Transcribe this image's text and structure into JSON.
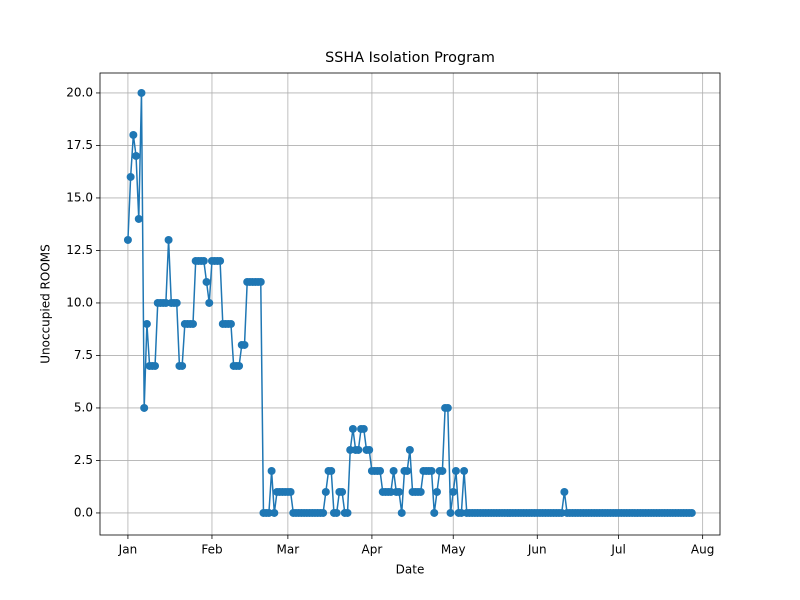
{
  "chart_data": {
    "type": "line",
    "title": "SSHA Isolation Program",
    "x_label": "Date",
    "y_label": "Unoccupied ROOMS",
    "color": "#1f77b4",
    "grid": true,
    "x": [
      0,
      1,
      2,
      3,
      4,
      5,
      6,
      7,
      8,
      9,
      10,
      11,
      12,
      13,
      14,
      15,
      16,
      17,
      18,
      19,
      20,
      21,
      22,
      23,
      24,
      25,
      26,
      27,
      28,
      29,
      30,
      31,
      32,
      33,
      34,
      35,
      36,
      37,
      38,
      39,
      40,
      41,
      42,
      43,
      44,
      45,
      46,
      47,
      48,
      49,
      50,
      51,
      52,
      53,
      54,
      55,
      56,
      57,
      58,
      59,
      60,
      61,
      62,
      63,
      64,
      65,
      66,
      67,
      68,
      69,
      70,
      71,
      72,
      73,
      74,
      75,
      76,
      77,
      78,
      79,
      80,
      81,
      82,
      83,
      84,
      85,
      86,
      87,
      88,
      89,
      90,
      91,
      92,
      93,
      94,
      95,
      96,
      97,
      98,
      99,
      100,
      101,
      102,
      103,
      104,
      105,
      106,
      107,
      108,
      109,
      110,
      111,
      112,
      113,
      114,
      115,
      116,
      117,
      118,
      119,
      120,
      121,
      122,
      123,
      124,
      125,
      126,
      127,
      128,
      129,
      130,
      131,
      132,
      133,
      134,
      135,
      136,
      137,
      138,
      139,
      140,
      141,
      142,
      143,
      144,
      145,
      146,
      147,
      148,
      149,
      150,
      151,
      152,
      153,
      154,
      155,
      156,
      157,
      158,
      159,
      160,
      161,
      162,
      163,
      164,
      165,
      166,
      167,
      168,
      169,
      170,
      171,
      172,
      173,
      174,
      175,
      176,
      177,
      178,
      179,
      180,
      181,
      182,
      183,
      184,
      185,
      186,
      187,
      188,
      189,
      190,
      191,
      192,
      193,
      194,
      195,
      196,
      197,
      198,
      199,
      200,
      201,
      202,
      203,
      204,
      205,
      206,
      207,
      208
    ],
    "values": [
      13,
      16,
      18,
      17,
      14,
      20,
      5,
      9,
      7,
      7,
      7,
      10,
      10,
      10,
      10,
      13,
      10,
      10,
      10,
      7,
      7,
      9,
      9,
      9,
      9,
      12,
      12,
      12,
      12,
      11,
      10,
      12,
      12,
      12,
      12,
      9,
      9,
      9,
      9,
      7,
      7,
      7,
      8,
      8,
      11,
      11,
      11,
      11,
      11,
      11,
      0,
      0,
      0,
      2,
      0,
      1,
      1,
      1,
      1,
      1,
      1,
      0,
      0,
      0,
      0,
      0,
      0,
      0,
      0,
      0,
      0,
      0,
      0,
      1,
      2,
      2,
      0,
      0,
      1,
      1,
      0,
      0,
      3,
      4,
      3,
      3,
      4,
      4,
      3,
      3,
      2,
      2,
      2,
      2,
      1,
      1,
      1,
      1,
      2,
      1,
      1,
      0,
      2,
      2,
      3,
      1,
      1,
      1,
      1,
      2,
      2,
      2,
      2,
      0,
      1,
      2,
      2,
      5,
      5,
      0,
      1,
      2,
      0,
      0,
      2,
      0,
      0,
      0,
      0,
      0,
      0,
      0,
      0,
      0,
      0,
      0,
      0,
      0,
      0,
      0,
      0,
      0,
      0,
      0,
      0,
      0,
      0,
      0,
      0,
      0,
      0,
      0,
      0,
      0,
      0,
      0,
      0,
      0,
      0,
      0,
      0,
      1,
      0,
      0,
      0,
      0,
      0,
      0,
      0,
      0,
      0,
      0,
      0,
      0,
      0,
      0,
      0,
      0,
      0,
      0,
      0,
      0,
      0,
      0,
      0,
      0,
      0,
      0,
      0,
      0,
      0,
      0,
      0,
      0,
      0,
      0,
      0,
      0,
      0,
      0,
      0,
      0,
      0,
      0,
      0,
      0,
      0,
      0,
      0
    ],
    "xlim": [
      -10.3,
      218.4
    ],
    "ylim": [
      -1.05,
      20.95
    ],
    "xticks": [
      {
        "value": 0,
        "label": "Jan"
      },
      {
        "value": 31,
        "label": "Feb"
      },
      {
        "value": 59,
        "label": "Mar"
      },
      {
        "value": 90,
        "label": "Apr"
      },
      {
        "value": 120,
        "label": "May"
      },
      {
        "value": 151,
        "label": "Jun"
      },
      {
        "value": 181,
        "label": "Jul"
      },
      {
        "value": 212,
        "label": "Aug"
      }
    ],
    "yticks": [
      {
        "value": 0,
        "label": "0.0"
      },
      {
        "value": 2.5,
        "label": "2.5"
      },
      {
        "value": 5,
        "label": "5.0"
      },
      {
        "value": 7.5,
        "label": "7.5"
      },
      {
        "value": 10,
        "label": "10.0"
      },
      {
        "value": 12.5,
        "label": "12.5"
      },
      {
        "value": 15,
        "label": "15.0"
      },
      {
        "value": 17.5,
        "label": "17.5"
      },
      {
        "value": 20,
        "label": "20.0"
      }
    ]
  }
}
